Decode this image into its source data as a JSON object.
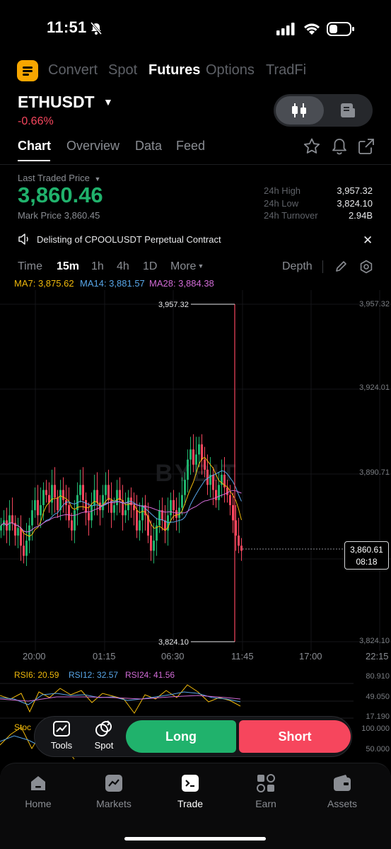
{
  "status_bar": {
    "time": "11:51"
  },
  "top_tabs": [
    "Convert",
    "Spot",
    "Futures",
    "Options",
    "TradFi"
  ],
  "top_tab_active": "Futures",
  "symbol": {
    "name": "ETHUSDT",
    "change": "-0.66%"
  },
  "sub_tabs": [
    "Chart",
    "Overview",
    "Data",
    "Feed"
  ],
  "price": {
    "last_label": "Last Traded Price",
    "last": "3,860.46",
    "mark": "Mark Price 3,860.45"
  },
  "stats": [
    {
      "label": "24h High",
      "value": "3,957.32"
    },
    {
      "label": "24h Low",
      "value": "3,824.10"
    },
    {
      "label": "24h Turnover",
      "value": "2.94B"
    }
  ],
  "notice": "Delisting of CPOOLUSDT Perpetual  Contract",
  "timeframes": [
    "Time",
    "15m",
    "1h",
    "4h",
    "1D",
    "More"
  ],
  "timeframe_active": "15m",
  "depth_label": "Depth",
  "ma": [
    {
      "text": "MA7: 3,875.62",
      "color": "#f0b90b"
    },
    {
      "text": "MA14: 3,881.57",
      "color": "#58a6e8"
    },
    {
      "text": "MA28: 3,884.38",
      "color": "#d16bd6"
    }
  ],
  "chart_data": {
    "type": "candlestick",
    "symbol": "ETHUSDT",
    "interval": "15m",
    "price_axis": [
      "3,957.32",
      "3,924.01",
      "3,890.71",
      "3,824.10"
    ],
    "time_axis": [
      "20:00",
      "01:15",
      "06:30",
      "11:45",
      "17:00",
      "22:15"
    ],
    "high_label": "3,957.32",
    "low_label": "3,824.10",
    "current_price": "3,860.61",
    "countdown": "08:18",
    "ylim": [
      3820,
      3960
    ],
    "colors": {
      "up": "#20b26c",
      "down": "#f6465d"
    },
    "watermark": "BYBIT"
  },
  "rsi": [
    {
      "text": "RSI6: 20.59",
      "color": "#f0b90b"
    },
    {
      "text": "RSI12: 32.57",
      "color": "#58a6e8"
    },
    {
      "text": "RSI24: 41.56",
      "color": "#d16bd6"
    }
  ],
  "rsi_axis": [
    "80.910",
    "49.050",
    "17.190"
  ],
  "stoch_label": "Stoc",
  "stoch_axis": [
    "100.000",
    "50.000"
  ],
  "actions": {
    "tools": "Tools",
    "spot": "Spot",
    "long": "Long",
    "short": "Short"
  },
  "bottom_nav": [
    "Home",
    "Markets",
    "Trade",
    "Earn",
    "Assets"
  ],
  "bottom_nav_active": "Trade"
}
